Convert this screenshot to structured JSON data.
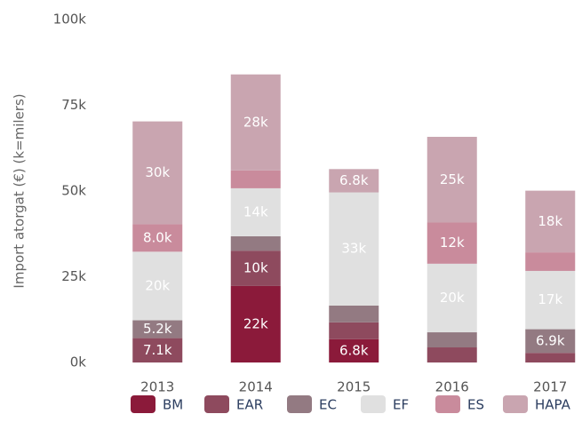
{
  "chart_data": {
    "type": "stacked_bar",
    "ylabel": "Import atorgat (€) (k=milers)",
    "categories": [
      "2013",
      "2014",
      "2015",
      "2016",
      "2017"
    ],
    "series": [
      {
        "name": "BM",
        "color": "#8b1a3a",
        "values": [
          0,
          22.3,
          6.8,
          0,
          0
        ],
        "value_labels": [
          null,
          "22k",
          "6.8k",
          null,
          null
        ]
      },
      {
        "name": "EAR",
        "color": "#8e4a5e",
        "values": [
          7.1,
          10.3,
          4.9,
          4.4,
          2.8
        ],
        "value_labels": [
          "7.1k",
          "10k",
          null,
          null,
          null
        ]
      },
      {
        "name": "EC",
        "color": "#937a82",
        "values": [
          5.2,
          4.2,
          4.9,
          4.4,
          6.9
        ],
        "value_labels": [
          "5.2k",
          null,
          null,
          null,
          "6.9k"
        ]
      },
      {
        "name": "EF",
        "color": "#e0e0e0",
        "values": [
          20,
          14,
          33,
          20,
          17
        ],
        "value_labels": [
          "20k",
          "14k",
          "33k",
          "20k",
          "17k"
        ]
      },
      {
        "name": "ES",
        "color": "#c98b9c",
        "values": [
          8.0,
          5.2,
          0,
          12,
          5.4
        ],
        "value_labels": [
          "8.0k",
          null,
          null,
          "12k",
          null
        ]
      },
      {
        "name": "HAPA",
        "color": "#c9a5b0",
        "values": [
          30,
          28,
          6.8,
          25,
          18
        ],
        "value_labels": [
          "30k",
          "28k",
          "6.8k",
          "25k",
          "18k"
        ]
      }
    ],
    "ylim": [
      0,
      100
    ],
    "yticks": [
      {
        "value": 0,
        "label": "0k"
      },
      {
        "value": 25,
        "label": "25k"
      },
      {
        "value": 50,
        "label": "50k"
      },
      {
        "value": 75,
        "label": "75k"
      },
      {
        "value": 100,
        "label": "100k"
      }
    ],
    "legend": "bottom"
  }
}
